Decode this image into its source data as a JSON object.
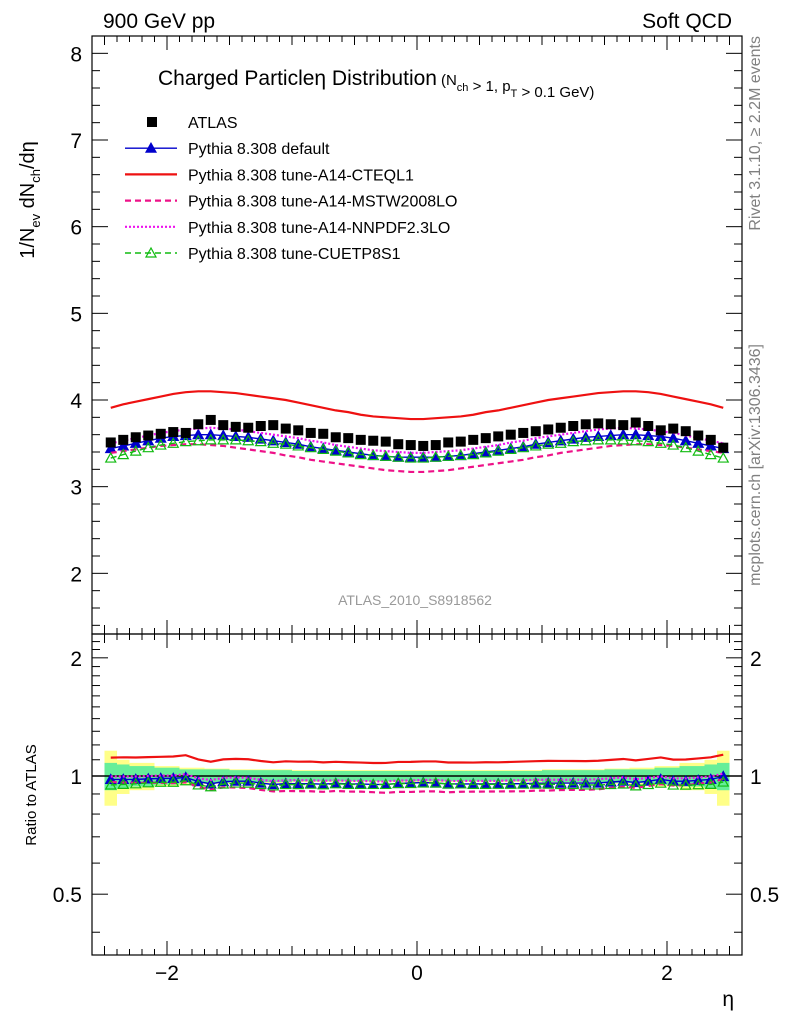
{
  "header": {
    "left": "900 GeV pp",
    "right": "Soft QCD"
  },
  "side_labels": {
    "rivet": "Rivet 3.1.10, ≥ 2.2M events",
    "mcplots": "mcplots.cern.ch [arXiv:1306.3436]"
  },
  "chart_data": {
    "type": "scatter",
    "title_main": "Charged Particleη Distribution",
    "title_sub": "(N_ch > 1, p_T > 0.1 GeV)",
    "analysis_label": "ATLAS_2010_S8918562",
    "xlabel": "η",
    "ylabel_main": "1/N_ev dN_ch/dη",
    "ylabel_ratio": "Ratio to ATLAS",
    "xlim": [
      -2.6,
      2.6
    ],
    "ylim_main": [
      1.3,
      8.2
    ],
    "ylim_ratio": [
      0.35,
      2.3
    ],
    "x_ticks": [
      "−2",
      "0",
      "2"
    ],
    "x_tick_values": [
      -2,
      0,
      2
    ],
    "y_ticks_main": [
      "2",
      "3",
      "4",
      "5",
      "6",
      "7",
      "8"
    ],
    "y_tick_values_main": [
      2,
      3,
      4,
      5,
      6,
      7,
      8
    ],
    "y_ticks_ratio": [
      "0.5",
      "1",
      "2"
    ],
    "y_tick_values_ratio": [
      0.5,
      1,
      2
    ],
    "x": [
      -2.45,
      -2.35,
      -2.25,
      -2.15,
      -2.05,
      -1.95,
      -1.85,
      -1.75,
      -1.65,
      -1.55,
      -1.45,
      -1.35,
      -1.25,
      -1.15,
      -1.05,
      -0.95,
      -0.85,
      -0.75,
      -0.65,
      -0.55,
      -0.45,
      -0.35,
      -0.25,
      -0.15,
      -0.05,
      0.05,
      0.15,
      0.25,
      0.35,
      0.45,
      0.55,
      0.65,
      0.75,
      0.85,
      0.95,
      1.05,
      1.15,
      1.25,
      1.35,
      1.45,
      1.55,
      1.65,
      1.75,
      1.85,
      1.95,
      2.05,
      2.15,
      2.25,
      2.35,
      2.45
    ],
    "data": {
      "name": "ATLAS",
      "values": [
        3.51,
        3.54,
        3.57,
        3.59,
        3.61,
        3.63,
        3.62,
        3.72,
        3.77,
        3.71,
        3.69,
        3.68,
        3.7,
        3.71,
        3.67,
        3.65,
        3.62,
        3.61,
        3.57,
        3.56,
        3.54,
        3.53,
        3.52,
        3.49,
        3.48,
        3.47,
        3.48,
        3.51,
        3.52,
        3.54,
        3.56,
        3.58,
        3.6,
        3.62,
        3.64,
        3.66,
        3.68,
        3.7,
        3.72,
        3.73,
        3.72,
        3.71,
        3.74,
        3.7,
        3.65,
        3.67,
        3.64,
        3.59,
        3.54,
        3.45
      ]
    },
    "bands": {
      "inner": [
        0.08,
        0.07,
        0.06,
        0.06,
        0.05,
        0.05,
        0.04,
        0.04,
        0.04,
        0.04,
        0.035,
        0.035,
        0.035,
        0.035,
        0.035,
        0.03,
        0.03,
        0.03,
        0.03,
        0.03,
        0.03,
        0.03,
        0.03,
        0.03,
        0.03,
        0.03,
        0.03,
        0.03,
        0.03,
        0.03,
        0.03,
        0.03,
        0.03,
        0.03,
        0.03,
        0.035,
        0.035,
        0.035,
        0.035,
        0.035,
        0.04,
        0.04,
        0.04,
        0.04,
        0.05,
        0.05,
        0.06,
        0.06,
        0.07,
        0.08
      ],
      "outer": [
        0.16,
        0.1,
        0.08,
        0.08,
        0.06,
        0.06,
        0.05,
        0.05,
        0.045,
        0.045,
        0.04,
        0.04,
        0.04,
        0.04,
        0.04,
        0.035,
        0.035,
        0.035,
        0.035,
        0.035,
        0.035,
        0.035,
        0.035,
        0.035,
        0.035,
        0.035,
        0.035,
        0.035,
        0.035,
        0.035,
        0.035,
        0.035,
        0.035,
        0.035,
        0.035,
        0.04,
        0.04,
        0.04,
        0.04,
        0.04,
        0.045,
        0.045,
        0.05,
        0.05,
        0.06,
        0.06,
        0.08,
        0.08,
        0.1,
        0.16
      ]
    },
    "series": [
      {
        "name": "Pythia 8.308 default",
        "color": "#0000cc",
        "dash": "",
        "marker": "triangle-filled",
        "values": [
          3.44,
          3.47,
          3.5,
          3.53,
          3.56,
          3.58,
          3.59,
          3.6,
          3.6,
          3.59,
          3.58,
          3.57,
          3.55,
          3.53,
          3.51,
          3.49,
          3.46,
          3.44,
          3.42,
          3.4,
          3.38,
          3.36,
          3.35,
          3.34,
          3.34,
          3.34,
          3.34,
          3.35,
          3.36,
          3.38,
          3.4,
          3.42,
          3.44,
          3.46,
          3.49,
          3.51,
          3.53,
          3.55,
          3.57,
          3.58,
          3.59,
          3.6,
          3.6,
          3.59,
          3.58,
          3.56,
          3.53,
          3.5,
          3.47,
          3.44
        ]
      },
      {
        "name": "Pythia 8.308 tune-A14-CTEQL1",
        "color": "#ee1111",
        "dash": "",
        "marker": "none",
        "values": [
          3.91,
          3.95,
          3.98,
          4.01,
          4.04,
          4.07,
          4.09,
          4.1,
          4.1,
          4.09,
          4.08,
          4.06,
          4.04,
          4.02,
          4.0,
          3.97,
          3.94,
          3.91,
          3.88,
          3.86,
          3.83,
          3.81,
          3.8,
          3.79,
          3.78,
          3.78,
          3.79,
          3.8,
          3.81,
          3.83,
          3.86,
          3.88,
          3.91,
          3.94,
          3.97,
          4.0,
          4.02,
          4.04,
          4.06,
          4.08,
          4.09,
          4.1,
          4.1,
          4.09,
          4.07,
          4.04,
          4.01,
          3.98,
          3.95,
          3.91
        ]
      },
      {
        "name": "Pythia 8.308 tune-A14-MSTW2008LO",
        "color": "#ee1188",
        "dash": "6,4",
        "marker": "none",
        "values": [
          3.39,
          3.41,
          3.43,
          3.45,
          3.47,
          3.48,
          3.49,
          3.49,
          3.48,
          3.47,
          3.45,
          3.43,
          3.41,
          3.39,
          3.36,
          3.34,
          3.31,
          3.29,
          3.27,
          3.25,
          3.23,
          3.21,
          3.19,
          3.18,
          3.17,
          3.17,
          3.18,
          3.19,
          3.21,
          3.23,
          3.25,
          3.27,
          3.29,
          3.31,
          3.34,
          3.36,
          3.39,
          3.41,
          3.43,
          3.45,
          3.47,
          3.48,
          3.49,
          3.49,
          3.48,
          3.47,
          3.45,
          3.43,
          3.41,
          3.39
        ]
      },
      {
        "name": "Pythia 8.308 tune-A14-NNPDF2.3LO",
        "color": "#ee11ee",
        "dash": "2,2",
        "marker": "none",
        "values": [
          3.5,
          3.53,
          3.56,
          3.59,
          3.62,
          3.64,
          3.66,
          3.67,
          3.68,
          3.67,
          3.66,
          3.64,
          3.62,
          3.6,
          3.58,
          3.56,
          3.53,
          3.51,
          3.48,
          3.46,
          3.44,
          3.42,
          3.41,
          3.4,
          3.39,
          3.39,
          3.4,
          3.41,
          3.42,
          3.44,
          3.46,
          3.48,
          3.51,
          3.53,
          3.56,
          3.58,
          3.6,
          3.62,
          3.64,
          3.66,
          3.67,
          3.68,
          3.67,
          3.66,
          3.64,
          3.62,
          3.59,
          3.56,
          3.53,
          3.5
        ]
      },
      {
        "name": "Pythia 8.308 tune-CUETP8S1",
        "color": "#11bb11",
        "dash": "6,4",
        "marker": "triangle-open",
        "values": [
          3.33,
          3.37,
          3.41,
          3.45,
          3.48,
          3.5,
          3.52,
          3.53,
          3.54,
          3.54,
          3.54,
          3.53,
          3.52,
          3.5,
          3.49,
          3.47,
          3.45,
          3.43,
          3.41,
          3.39,
          3.37,
          3.36,
          3.35,
          3.34,
          3.33,
          3.33,
          3.34,
          3.35,
          3.36,
          3.37,
          3.39,
          3.41,
          3.43,
          3.45,
          3.47,
          3.49,
          3.5,
          3.52,
          3.53,
          3.54,
          3.54,
          3.54,
          3.53,
          3.52,
          3.5,
          3.48,
          3.45,
          3.41,
          3.37,
          3.33
        ]
      }
    ],
    "colors": {
      "band_inner": "#66ee99",
      "band_outer": "#ffff88",
      "data_marker": "#000000"
    },
    "legend_placement": "top-left",
    "grid": false
  }
}
